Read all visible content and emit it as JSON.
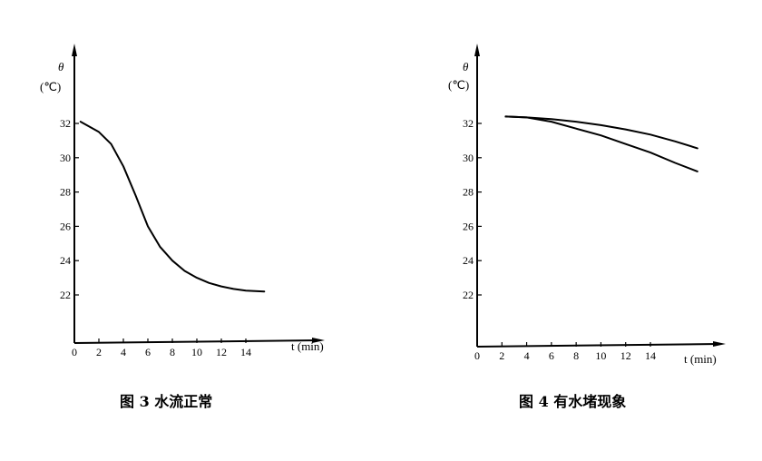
{
  "chart_data": [
    {
      "type": "line",
      "ylabel_symbol": "θ",
      "ylabel_unit": "(℃)",
      "xlabel": "t (min)",
      "x_ticks": [
        "0",
        "2",
        "4",
        "6",
        "8",
        "10",
        "12",
        "14"
      ],
      "y_ticks": [
        "32",
        "30",
        "28",
        "26",
        "24",
        "22"
      ],
      "xlim": [
        0,
        19
      ],
      "ylim": [
        20,
        34
      ],
      "caption": "图 3   水流正常",
      "series": [
        {
          "x": [
            0.5,
            2,
            3,
            4,
            5,
            6,
            7,
            8,
            9,
            10,
            11,
            12,
            13,
            14,
            15.5
          ],
          "y": [
            32.1,
            31.5,
            30.8,
            29.5,
            27.8,
            26.0,
            24.8,
            24.0,
            23.4,
            23.0,
            22.7,
            22.5,
            22.35,
            22.25,
            22.2
          ]
        }
      ]
    },
    {
      "type": "line",
      "ylabel_symbol": "θ",
      "ylabel_unit": "(℃)",
      "xlabel": "t (min)",
      "x_ticks": [
        "0",
        "2",
        "4",
        "6",
        "8",
        "10",
        "12",
        "14"
      ],
      "y_ticks": [
        "32",
        "30",
        "28",
        "26",
        "24",
        "22"
      ],
      "xlim": [
        0,
        19
      ],
      "ylim": [
        20,
        34
      ],
      "caption": "图 4   有水堵现象",
      "series": [
        {
          "x": [
            2.3,
            4,
            6,
            8,
            10,
            12,
            14,
            16,
            17.8
          ],
          "y": [
            32.4,
            32.35,
            32.25,
            32.1,
            31.9,
            31.65,
            31.35,
            30.95,
            30.55
          ]
        },
        {
          "x": [
            2.3,
            4,
            6,
            8,
            10,
            12,
            14,
            16,
            17.8
          ],
          "y": [
            32.4,
            32.35,
            32.1,
            31.7,
            31.3,
            30.8,
            30.3,
            29.7,
            29.2
          ]
        }
      ]
    }
  ]
}
